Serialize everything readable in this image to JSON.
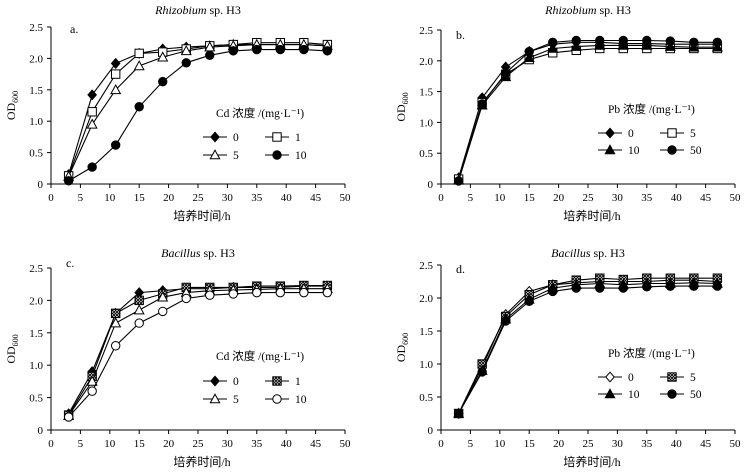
{
  "chart_data": [
    {
      "type": "line",
      "panel_label": "a.",
      "title": {
        "italic": "Rhizobium",
        "rest": " sp. H3"
      },
      "xlabel": "培养时间/h",
      "ylabel": {
        "base": "OD",
        "sub": "600"
      },
      "xlim": [
        0,
        50
      ],
      "ylim": [
        0,
        2.5
      ],
      "xticks": [
        "0",
        "5",
        "10",
        "15",
        "20",
        "25",
        "30",
        "35",
        "40",
        "45",
        "50"
      ],
      "yticks": [
        "0",
        "0.5",
        "1.0",
        "1.5",
        "2.0",
        "2.5"
      ],
      "legend_title": "Cd 浓度 /(mg·L⁻¹)",
      "x": [
        3,
        7,
        11,
        15,
        19,
        23,
        27,
        31,
        35,
        39,
        43,
        47
      ],
      "series": [
        {
          "name": "0",
          "marker": "diamond-filled",
          "values": [
            0.15,
            1.42,
            1.92,
            2.08,
            2.15,
            2.18,
            2.2,
            2.22,
            2.22,
            2.22,
            2.22,
            2.2
          ]
        },
        {
          "name": "1",
          "marker": "square-open",
          "values": [
            0.13,
            1.15,
            1.75,
            2.08,
            2.1,
            2.15,
            2.2,
            2.22,
            2.25,
            2.25,
            2.25,
            2.22
          ]
        },
        {
          "name": "5",
          "marker": "triangle-open",
          "values": [
            0.12,
            0.95,
            1.5,
            1.88,
            2.02,
            2.12,
            2.18,
            2.2,
            2.22,
            2.22,
            2.22,
            2.2
          ]
        },
        {
          "name": "10",
          "marker": "circle-filled",
          "values": [
            0.05,
            0.27,
            0.62,
            1.23,
            1.63,
            1.93,
            2.05,
            2.12,
            2.14,
            2.14,
            2.14,
            2.12
          ]
        }
      ]
    },
    {
      "type": "line",
      "panel_label": "b.",
      "title": {
        "italic": "Rhizobium",
        "rest": " sp. H3"
      },
      "xlabel": "培养时间/h",
      "ylabel": {
        "base": "OD",
        "sub": "600"
      },
      "xlim": [
        0,
        50
      ],
      "ylim": [
        0,
        2.5
      ],
      "xticks": [
        "0",
        "5",
        "10",
        "15",
        "20",
        "25",
        "30",
        "35",
        "40",
        "45",
        "50"
      ],
      "yticks": [
        "0",
        "0.5",
        "1.0",
        "1.5",
        "2.0",
        "2.5"
      ],
      "legend_title": "Pb 浓度 /(mg·L⁻¹)",
      "x": [
        3,
        7,
        11,
        15,
        19,
        23,
        27,
        31,
        35,
        39,
        43,
        47
      ],
      "series": [
        {
          "name": "0",
          "marker": "diamond-filled",
          "values": [
            0.1,
            1.4,
            1.9,
            2.15,
            2.27,
            2.3,
            2.3,
            2.28,
            2.28,
            2.27,
            2.27,
            2.27
          ]
        },
        {
          "name": "5",
          "marker": "square-open",
          "values": [
            0.08,
            1.32,
            1.78,
            2.02,
            2.13,
            2.17,
            2.2,
            2.2,
            2.2,
            2.2,
            2.2,
            2.2
          ]
        },
        {
          "name": "10",
          "marker": "triangle-filled",
          "values": [
            0.06,
            1.28,
            1.74,
            2.05,
            2.2,
            2.23,
            2.25,
            2.25,
            2.25,
            2.23,
            2.22,
            2.22
          ]
        },
        {
          "name": "50",
          "marker": "circle-filled",
          "values": [
            0.05,
            1.3,
            1.8,
            2.15,
            2.3,
            2.33,
            2.33,
            2.33,
            2.33,
            2.32,
            2.3,
            2.3
          ]
        }
      ]
    },
    {
      "type": "line",
      "panel_label": "c.",
      "title": {
        "italic": "Bacillus",
        "rest": " sp. H3"
      },
      "xlabel": "培养时间/h",
      "ylabel": {
        "base": "OD",
        "sub": "600"
      },
      "xlim": [
        0,
        50
      ],
      "ylim": [
        0,
        2.5
      ],
      "xticks": [
        "0",
        "5",
        "10",
        "15",
        "20",
        "25",
        "30",
        "35",
        "40",
        "45",
        "50"
      ],
      "yticks": [
        "0",
        "0.5",
        "1.0",
        "1.5",
        "2.0",
        "2.5"
      ],
      "legend_title": "Cd 浓度 /(mg·L⁻¹)",
      "x": [
        3,
        7,
        11,
        15,
        19,
        23,
        27,
        31,
        35,
        39,
        43,
        47
      ],
      "series": [
        {
          "name": "0",
          "marker": "diamond-filled",
          "values": [
            0.25,
            0.9,
            1.8,
            2.12,
            2.15,
            2.18,
            2.18,
            2.2,
            2.2,
            2.2,
            2.22,
            2.22
          ]
        },
        {
          "name": "1",
          "marker": "square-hatched",
          "values": [
            0.23,
            0.83,
            1.8,
            2.0,
            2.1,
            2.2,
            2.2,
            2.2,
            2.22,
            2.22,
            2.23,
            2.23
          ]
        },
        {
          "name": "5",
          "marker": "triangle-open",
          "values": [
            0.22,
            0.75,
            1.65,
            1.85,
            2.05,
            2.12,
            2.15,
            2.16,
            2.17,
            2.18,
            2.18,
            2.18
          ]
        },
        {
          "name": "10",
          "marker": "circle-open",
          "values": [
            0.2,
            0.6,
            1.3,
            1.65,
            1.83,
            2.03,
            2.08,
            2.1,
            2.12,
            2.12,
            2.12,
            2.12
          ]
        }
      ]
    },
    {
      "type": "line",
      "panel_label": "d.",
      "title": {
        "italic": "Bacillus",
        "rest": " sp. H3"
      },
      "xlabel": "培养时间/h",
      "ylabel": {
        "base": "OD",
        "sub": "600"
      },
      "xlim": [
        0,
        50
      ],
      "ylim": [
        0,
        2.5
      ],
      "xticks": [
        "0",
        "5",
        "10",
        "15",
        "20",
        "25",
        "30",
        "35",
        "40",
        "45",
        "50"
      ],
      "yticks": [
        "0",
        "0.5",
        "1.0",
        "1.5",
        "2.0",
        "2.5"
      ],
      "legend_title": "Pb 浓度 /(mg·L⁻¹)",
      "x": [
        3,
        7,
        11,
        15,
        19,
        23,
        27,
        31,
        35,
        39,
        43,
        47
      ],
      "series": [
        {
          "name": "0",
          "marker": "diamond-open",
          "values": [
            0.25,
            0.95,
            1.75,
            2.1,
            2.2,
            2.23,
            2.25,
            2.25,
            2.25,
            2.27,
            2.27,
            2.25
          ]
        },
        {
          "name": "5",
          "marker": "square-hatched",
          "values": [
            0.25,
            1.0,
            1.72,
            2.05,
            2.2,
            2.27,
            2.3,
            2.28,
            2.3,
            2.3,
            2.3,
            2.3
          ]
        },
        {
          "name": "10",
          "marker": "triangle-filled",
          "values": [
            0.25,
            0.9,
            1.68,
            1.98,
            2.15,
            2.2,
            2.22,
            2.2,
            2.22,
            2.22,
            2.23,
            2.22
          ]
        },
        {
          "name": "50",
          "marker": "circle-filled",
          "values": [
            0.25,
            0.88,
            1.65,
            1.95,
            2.1,
            2.15,
            2.15,
            2.15,
            2.17,
            2.18,
            2.18,
            2.18
          ]
        }
      ]
    }
  ]
}
